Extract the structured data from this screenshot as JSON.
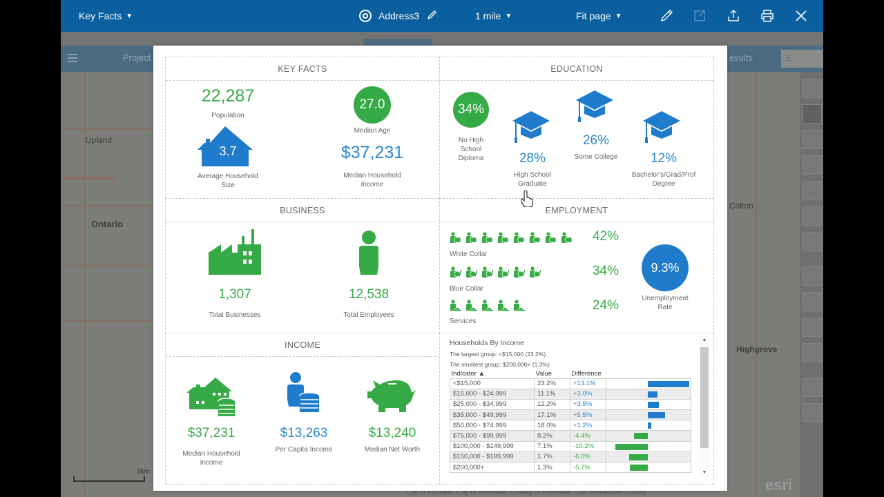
{
  "topbar": {
    "report_dropdown": "Key Facts",
    "location_name": "Address3",
    "radius_dropdown": "1 mile",
    "zoom_dropdown": "Fit page",
    "icons": [
      "edit-icon",
      "open-external-icon",
      "export-icon",
      "print-icon",
      "close-icon"
    ]
  },
  "background": {
    "header_left": "Project",
    "header_right": "esults",
    "search_placeholder": "E",
    "map_labels": [
      "Upland",
      "Ontario",
      "Highgrove",
      "Colton"
    ],
    "scale_label": "3km",
    "attribution": "City of Fontana, City of Riverside, County of Riverside, San Bernardino County",
    "esri_logo": "esri"
  },
  "report": {
    "key_facts": {
      "title": "KEY FACTS",
      "population": {
        "value": "22,287",
        "label": "Population"
      },
      "median_age": {
        "value": "27.0",
        "label": "Median Age"
      },
      "avg_household_size": {
        "value": "3.7",
        "label": "Average Household Size"
      },
      "median_household_income": {
        "value": "$37,231",
        "label": "Median Household Income"
      }
    },
    "education": {
      "title": "EDUCATION",
      "no_hs": {
        "value": "34%",
        "label": "No High School Diploma"
      },
      "hs_grad": {
        "value": "28%",
        "label": "High School Graduate"
      },
      "some_college": {
        "value": "26%",
        "label": "Some College"
      },
      "bachelors": {
        "value": "12%",
        "label": "Bachelor's/Grad/Prof Degree"
      }
    },
    "business": {
      "title": "BUSINESS",
      "total_businesses": {
        "value": "1,307",
        "label": "Total Businesses"
      },
      "total_employees": {
        "value": "12,538",
        "label": "Total Employees"
      }
    },
    "employment": {
      "title": "EMPLOYMENT",
      "white_collar": {
        "value": "42%",
        "label": "White Collar",
        "icons": 8
      },
      "blue_collar": {
        "value": "34%",
        "label": "Blue Collar",
        "icons": 6
      },
      "services": {
        "value": "24%",
        "label": "Services",
        "icons": 5
      },
      "unemployment": {
        "value": "9.3%",
        "label": "Unemployment Rate"
      }
    },
    "income": {
      "title": "INCOME",
      "median_household_income": {
        "value": "$37,231",
        "label": "Median Household Income"
      },
      "per_capita_income": {
        "value": "$13,263",
        "label": "Per Capita Income"
      },
      "median_net_worth": {
        "value": "$13,240",
        "label": "Median Net Worth"
      }
    },
    "households_by_income": {
      "title": "Households By Income",
      "largest": "The largest group: <$15,000 (23.2%)",
      "smallest": "The smallest group: $200,000+ (1.3%)",
      "headers": [
        "Indicator ▲",
        "Value",
        "Difference"
      ],
      "rows": [
        {
          "indicator": "<$15,000",
          "value": "23.2%",
          "difference": "+13.1%",
          "diff_num": 13.1
        },
        {
          "indicator": "$15,000 - $24,999",
          "value": "11.1%",
          "difference": "+3.0%",
          "diff_num": 3.0
        },
        {
          "indicator": "$25,000 - $34,999",
          "value": "12.2%",
          "difference": "+3.5%",
          "diff_num": 3.5
        },
        {
          "indicator": "$35,000 - $49,999",
          "value": "17.1%",
          "difference": "+5.5%",
          "diff_num": 5.5
        },
        {
          "indicator": "$50,000 - $74,999",
          "value": "18.0%",
          "difference": "+1.2%",
          "diff_num": 1.2
        },
        {
          "indicator": "$75,000 - $99,999",
          "value": "8.2%",
          "difference": "-4.4%",
          "diff_num": -4.4
        },
        {
          "indicator": "$100,000 - $149,999",
          "value": "7.1%",
          "difference": "-10.2%",
          "diff_num": -10.2
        },
        {
          "indicator": "$150,000 - $199,999",
          "value": "1.7%",
          "difference": "-6.0%",
          "diff_num": -6.0
        },
        {
          "indicator": "$200,000+",
          "value": "1.3%",
          "difference": "-5.7%",
          "diff_num": -5.7
        }
      ],
      "pos_color": "#1f7ccc",
      "neg_color": "#35aa46"
    }
  }
}
